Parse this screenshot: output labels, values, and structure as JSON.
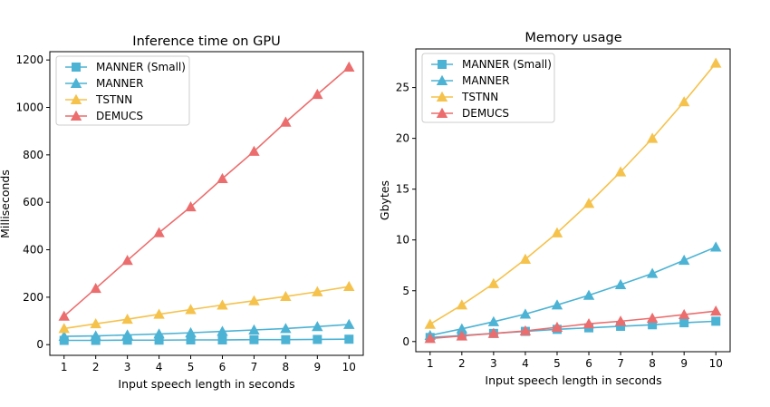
{
  "figure": {
    "background": "#ffffff"
  },
  "chart_data": [
    {
      "type": "line",
      "title": "Inference time on GPU",
      "xlabel": "Input speech length in seconds",
      "ylabel": "Milliseconds",
      "x": [
        1,
        2,
        3,
        4,
        5,
        6,
        7,
        8,
        9,
        10
      ],
      "xlim": [
        0.55,
        10.45
      ],
      "ylim": [
        -45,
        1235
      ],
      "yticks": [
        0,
        200,
        400,
        600,
        800,
        1000,
        1200
      ],
      "grid": false,
      "legend_position": "top-left",
      "series": [
        {
          "name": "MANNER (Small)",
          "marker": "square",
          "color": "#4cb3d4",
          "values": [
            18,
            18,
            19,
            19,
            20,
            20,
            21,
            21,
            22,
            23
          ]
        },
        {
          "name": "MANNER",
          "marker": "triangle",
          "color": "#4cb3d4",
          "values": [
            35,
            37,
            41,
            45,
            50,
            56,
            62,
            68,
            76,
            85
          ]
        },
        {
          "name": "TSTNN",
          "marker": "triangle",
          "color": "#f5c24c",
          "values": [
            68,
            88,
            107,
            128,
            148,
            167,
            185,
            203,
            223,
            245
          ]
        },
        {
          "name": "DEMUCS",
          "marker": "triangle",
          "color": "#ec6d6d",
          "values": [
            120,
            237,
            355,
            472,
            581,
            700,
            815,
            938,
            1055,
            1170
          ]
        }
      ]
    },
    {
      "type": "line",
      "title": "Memory usage",
      "xlabel": "Input speech length in seconds",
      "ylabel": "Gbytes",
      "x": [
        1,
        2,
        3,
        4,
        5,
        6,
        7,
        8,
        9,
        10
      ],
      "xlim": [
        0.55,
        10.45
      ],
      "ylim": [
        -1.0,
        28.8
      ],
      "yticks": [
        0,
        5,
        10,
        15,
        20,
        25
      ],
      "grid": false,
      "legend_position": "top-left",
      "series": [
        {
          "name": "MANNER (Small)",
          "marker": "square",
          "color": "#4cb3d4",
          "values": [
            0.4,
            0.6,
            0.8,
            1.0,
            1.2,
            1.35,
            1.5,
            1.65,
            1.85,
            2.0
          ]
        },
        {
          "name": "MANNER",
          "marker": "triangle",
          "color": "#4cb3d4",
          "values": [
            0.6,
            1.25,
            1.95,
            2.7,
            3.6,
            4.55,
            5.6,
            6.7,
            8.0,
            9.3
          ]
        },
        {
          "name": "TSTNN",
          "marker": "triangle",
          "color": "#f5c24c",
          "values": [
            1.7,
            3.6,
            5.7,
            8.1,
            10.7,
            13.6,
            16.7,
            20.0,
            23.6,
            27.4
          ]
        },
        {
          "name": "DEMUCS",
          "marker": "triangle",
          "color": "#ec6d6d",
          "values": [
            0.3,
            0.55,
            0.8,
            1.05,
            1.4,
            1.75,
            2.0,
            2.3,
            2.65,
            3.0
          ]
        }
      ]
    }
  ]
}
